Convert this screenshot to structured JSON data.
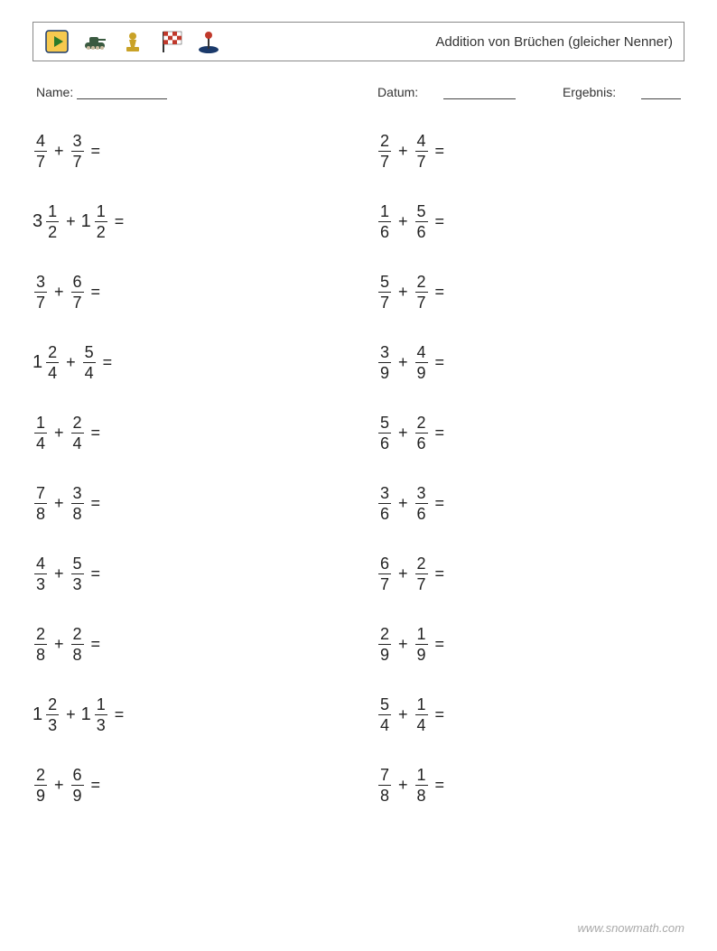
{
  "header": {
    "title": "Addition von Brüchen (gleicher Nenner)",
    "icons": [
      {
        "name": "play",
        "bg": "#f6c94f",
        "fg": "#2a7a2a",
        "border": "#1b3a6b"
      },
      {
        "name": "tank",
        "bg": "#3a5a40"
      },
      {
        "name": "chess",
        "bg": "#c9a227"
      },
      {
        "name": "flag",
        "bg": "#c0392b"
      },
      {
        "name": "joystick",
        "bg": "#1b3a6b",
        "accent": "#c0392b"
      }
    ]
  },
  "meta": {
    "name_label": "Name:",
    "date_label": "Datum:",
    "result_label": "Ergebnis:"
  },
  "colors": {
    "text": "#222",
    "border": "#888",
    "url": "#aaaaaa"
  },
  "problems_left": [
    {
      "a": {
        "n": "4",
        "d": "7"
      },
      "b": {
        "n": "3",
        "d": "7"
      }
    },
    {
      "a": {
        "w": "3",
        "n": "1",
        "d": "2"
      },
      "b": {
        "w": "1",
        "n": "1",
        "d": "2"
      }
    },
    {
      "a": {
        "n": "3",
        "d": "7"
      },
      "b": {
        "n": "6",
        "d": "7"
      }
    },
    {
      "a": {
        "w": "1",
        "n": "2",
        "d": "4"
      },
      "b": {
        "n": "5",
        "d": "4"
      }
    },
    {
      "a": {
        "n": "1",
        "d": "4"
      },
      "b": {
        "n": "2",
        "d": "4"
      }
    },
    {
      "a": {
        "n": "7",
        "d": "8"
      },
      "b": {
        "n": "3",
        "d": "8"
      }
    },
    {
      "a": {
        "n": "4",
        "d": "3"
      },
      "b": {
        "n": "5",
        "d": "3"
      }
    },
    {
      "a": {
        "n": "2",
        "d": "8"
      },
      "b": {
        "n": "2",
        "d": "8"
      }
    },
    {
      "a": {
        "w": "1",
        "n": "2",
        "d": "3"
      },
      "b": {
        "w": "1",
        "n": "1",
        "d": "3"
      }
    },
    {
      "a": {
        "n": "2",
        "d": "9"
      },
      "b": {
        "n": "6",
        "d": "9"
      }
    }
  ],
  "problems_right": [
    {
      "a": {
        "n": "2",
        "d": "7"
      },
      "b": {
        "n": "4",
        "d": "7"
      }
    },
    {
      "a": {
        "n": "1",
        "d": "6"
      },
      "b": {
        "n": "5",
        "d": "6"
      }
    },
    {
      "a": {
        "n": "5",
        "d": "7"
      },
      "b": {
        "n": "2",
        "d": "7"
      }
    },
    {
      "a": {
        "n": "3",
        "d": "9"
      },
      "b": {
        "n": "4",
        "d": "9"
      }
    },
    {
      "a": {
        "n": "5",
        "d": "6"
      },
      "b": {
        "n": "2",
        "d": "6"
      }
    },
    {
      "a": {
        "n": "3",
        "d": "6"
      },
      "b": {
        "n": "3",
        "d": "6"
      }
    },
    {
      "a": {
        "n": "6",
        "d": "7"
      },
      "b": {
        "n": "2",
        "d": "7"
      }
    },
    {
      "a": {
        "n": "2",
        "d": "9"
      },
      "b": {
        "n": "1",
        "d": "9"
      }
    },
    {
      "a": {
        "n": "5",
        "d": "4"
      },
      "b": {
        "n": "1",
        "d": "4"
      }
    },
    {
      "a": {
        "n": "7",
        "d": "8"
      },
      "b": {
        "n": "1",
        "d": "8"
      }
    }
  ],
  "footer_url": "www.snowmath.com"
}
